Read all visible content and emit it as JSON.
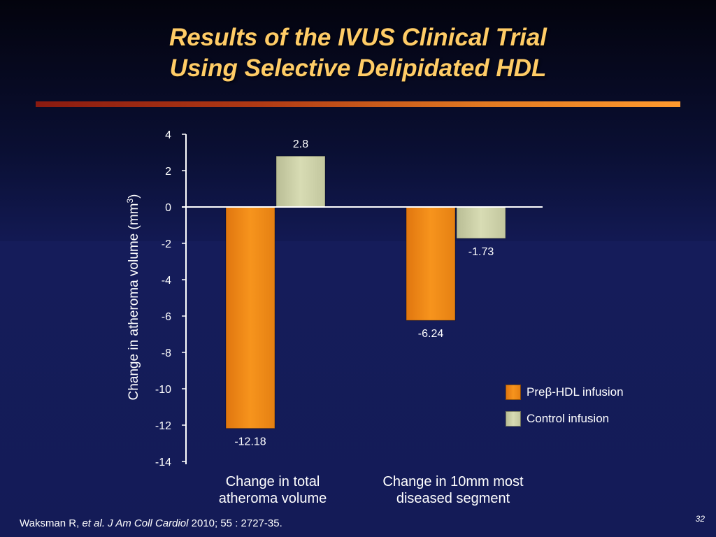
{
  "title_line1": "Results of the IVUS Clinical Trial",
  "title_line2": "Using Selective Delipidated HDL",
  "chart_data": {
    "type": "bar",
    "categories": [
      [
        "Change in total",
        "atheroma volume"
      ],
      [
        "Change in 10mm most",
        "diseased segment"
      ]
    ],
    "series": [
      {
        "name": "Preβ-HDL infusion",
        "values": [
          -12.18,
          -6.24
        ],
        "labels": [
          "-12.18",
          "-6.24"
        ],
        "color": "#f7941d"
      },
      {
        "name": "Control infusion",
        "values": [
          2.8,
          -1.73
        ],
        "labels": [
          "2.8",
          "-1.73"
        ],
        "color": "#d8dcb4"
      }
    ],
    "ylabel": "Change in atheroma volume (mm",
    "ylabel_sup": "3",
    "ylabel_suffix": ")",
    "ylim": [
      -14,
      4
    ],
    "yticks": [
      4,
      2,
      0,
      -2,
      -4,
      -6,
      -8,
      -10,
      -12,
      -14
    ],
    "legend_position": "right"
  },
  "footer": {
    "author": "Waksman R, ",
    "etal": "et al. J Am Coll Cardiol",
    "citation": " 2010; 55 : 2727-35."
  },
  "page_number": "32"
}
